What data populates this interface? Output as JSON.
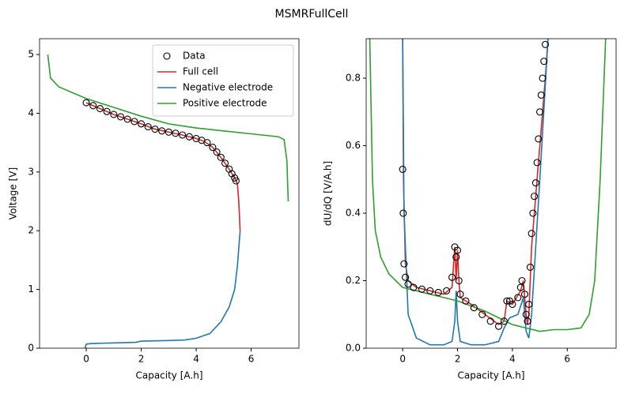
{
  "title": "MSMRFullCell",
  "chart_data": [
    {
      "type": "line",
      "xlabel": "Capacity [A.h]",
      "ylabel": "Voltage [V]",
      "xlim": [
        -1.7,
        7.74
      ],
      "ylim": [
        0,
        5.27
      ],
      "xticks": [
        0,
        2,
        4,
        6
      ],
      "yticks": [
        0,
        1,
        2,
        3,
        4,
        5
      ],
      "legend": "upper right",
      "series": [
        {
          "name": "Data",
          "style": "markers",
          "color": "#000000",
          "x": [
            0,
            0.25,
            0.5,
            0.75,
            1,
            1.25,
            1.5,
            1.75,
            2,
            2.25,
            2.5,
            2.75,
            3,
            3.25,
            3.5,
            3.75,
            4,
            4.2,
            4.4,
            4.6,
            4.75,
            4.9,
            5.05,
            5.2,
            5.3,
            5.4,
            5.45
          ],
          "values": [
            4.18,
            4.13,
            4.08,
            4.03,
            3.98,
            3.94,
            3.9,
            3.86,
            3.82,
            3.77,
            3.73,
            3.7,
            3.68,
            3.66,
            3.63,
            3.6,
            3.57,
            3.54,
            3.5,
            3.42,
            3.34,
            3.25,
            3.15,
            3.05,
            2.97,
            2.9,
            2.85
          ]
        },
        {
          "name": "Full cell",
          "style": "line",
          "color": "#d62728",
          "x": [
            0,
            0.5,
            1,
            1.5,
            2,
            2.5,
            3,
            3.5,
            4,
            4.3,
            4.6,
            4.9,
            5.2,
            5.4,
            5.5,
            5.55,
            5.6
          ],
          "values": [
            4.18,
            4.08,
            3.98,
            3.9,
            3.82,
            3.73,
            3.68,
            3.63,
            3.57,
            3.52,
            3.42,
            3.25,
            3.05,
            2.9,
            2.8,
            2.5,
            2.0
          ]
        },
        {
          "name": "Negative electrode",
          "style": "line",
          "color": "#1f77b4",
          "x": [
            -0.05,
            0,
            0.2,
            1,
            1.8,
            2,
            3,
            3.6,
            4,
            4.5,
            4.9,
            5.2,
            5.4,
            5.5,
            5.6
          ],
          "values": [
            0,
            0.07,
            0.08,
            0.09,
            0.1,
            0.12,
            0.13,
            0.14,
            0.17,
            0.25,
            0.45,
            0.7,
            1.0,
            1.4,
            2.0
          ]
        },
        {
          "name": "Positive electrode",
          "style": "line",
          "color": "#2ca02c",
          "x": [
            -1.4,
            -1.3,
            -1,
            0,
            1,
            2,
            3,
            4,
            5,
            6,
            7,
            7.2,
            7.3,
            7.35
          ],
          "values": [
            5.0,
            4.6,
            4.45,
            4.25,
            4.1,
            3.95,
            3.82,
            3.75,
            3.7,
            3.65,
            3.6,
            3.55,
            3.2,
            2.5
          ]
        }
      ]
    },
    {
      "type": "line",
      "xlabel": "Capacity [A.h]",
      "ylabel": "dU/dQ [V/A.h]",
      "xlim": [
        -1.33,
        7.78
      ],
      "ylim": [
        0,
        0.917
      ],
      "xticks": [
        0,
        2,
        4,
        6
      ],
      "yticks": [
        {
          "value": 0,
          "label": "0.0"
        },
        0.2,
        0.4,
        0.6,
        0.8
      ],
      "series": [
        {
          "style": "markers",
          "color": "#000000",
          "x": [
            0,
            0.02,
            0.05,
            0.1,
            0.2,
            0.4,
            0.7,
            1,
            1.3,
            1.6,
            1.8,
            1.9,
            1.95,
            2,
            2.05,
            2.1,
            2.3,
            2.6,
            2.9,
            3.2,
            3.5,
            3.7,
            3.8,
            3.9,
            4.0,
            4.2,
            4.3,
            4.35,
            4.45,
            4.5,
            4.55,
            4.6,
            4.65,
            4.7,
            4.75,
            4.8,
            4.85,
            4.9,
            4.95,
            5.0,
            5.05,
            5.1,
            5.15,
            5.2
          ],
          "values": [
            0.53,
            0.4,
            0.25,
            0.21,
            0.19,
            0.18,
            0.175,
            0.17,
            0.165,
            0.17,
            0.21,
            0.3,
            0.27,
            0.29,
            0.2,
            0.16,
            0.14,
            0.12,
            0.1,
            0.08,
            0.065,
            0.08,
            0.14,
            0.14,
            0.13,
            0.15,
            0.18,
            0.2,
            0.16,
            0.1,
            0.08,
            0.13,
            0.24,
            0.34,
            0.4,
            0.45,
            0.49,
            0.55,
            0.62,
            0.7,
            0.75,
            0.8,
            0.85,
            0.9
          ]
        },
        {
          "style": "line",
          "color": "#d62728",
          "x": [
            0,
            0.03,
            0.1,
            0.2,
            0.5,
            1,
            1.5,
            1.8,
            1.9,
            1.95,
            2.0,
            2.05,
            2.1,
            2.5,
            3,
            3.5,
            3.7,
            3.8,
            4,
            4.3,
            4.4,
            4.5,
            4.55,
            4.6,
            4.7,
            5.0,
            5.2,
            5.3
          ],
          "values": [
            0.92,
            0.5,
            0.25,
            0.2,
            0.18,
            0.17,
            0.16,
            0.18,
            0.3,
            0.2,
            0.29,
            0.2,
            0.15,
            0.13,
            0.1,
            0.07,
            0.08,
            0.14,
            0.13,
            0.17,
            0.2,
            0.1,
            0.07,
            0.1,
            0.3,
            0.6,
            0.8,
            0.92
          ]
        },
        {
          "style": "line",
          "color": "#1f77b4",
          "x": [
            0,
            0.05,
            0.2,
            0.5,
            1,
            1.5,
            1.8,
            1.9,
            1.95,
            2.0,
            2.1,
            2.5,
            3,
            3.5,
            3.7,
            3.9,
            4.2,
            4.4,
            4.5,
            4.6,
            4.7,
            5,
            5.3
          ],
          "values": [
            0.92,
            0.4,
            0.1,
            0.03,
            0.01,
            0.01,
            0.02,
            0.08,
            0.17,
            0.08,
            0.02,
            0.01,
            0.01,
            0.02,
            0.06,
            0.09,
            0.1,
            0.15,
            0.05,
            0.03,
            0.1,
            0.5,
            0.92
          ]
        },
        {
          "style": "line",
          "color": "#2ca02c",
          "x": [
            -1.2,
            -1.1,
            -1,
            -0.8,
            -0.5,
            0,
            0.5,
            1,
            2,
            3,
            3.5,
            4,
            4.5,
            5,
            5.5,
            6,
            6.5,
            6.8,
            7,
            7.2,
            7.4
          ],
          "values": [
            0.92,
            0.5,
            0.35,
            0.27,
            0.22,
            0.18,
            0.17,
            0.16,
            0.14,
            0.11,
            0.09,
            0.07,
            0.06,
            0.05,
            0.055,
            0.055,
            0.06,
            0.1,
            0.2,
            0.5,
            0.92
          ]
        }
      ]
    }
  ]
}
